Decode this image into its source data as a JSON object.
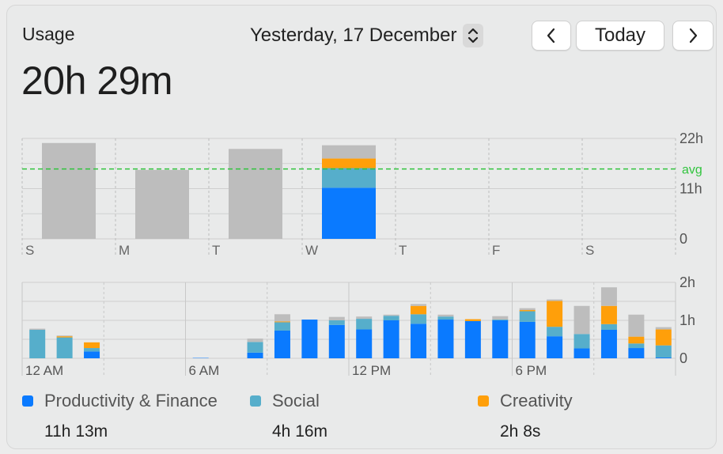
{
  "header": {
    "title": "Usage",
    "total": "20h 29m",
    "date_label": "Yesterday, 17 December",
    "today_label": "Today"
  },
  "colors": {
    "productivity": "#0a7aff",
    "social": "#56aecb",
    "creativity": "#ff9f0a",
    "other": "#bdbdbd",
    "avg_line": "#31c43e"
  },
  "icons": {
    "stepper": "chevron-up-down-icon",
    "prev": "chevron-left-icon",
    "next": "chevron-right-icon"
  },
  "legend": [
    {
      "name": "Productivity & Finance",
      "value": "11h 13m",
      "color": "#0a7aff"
    },
    {
      "name": "Social",
      "value": "4h 16m",
      "color": "#56aecb"
    },
    {
      "name": "Creativity",
      "value": "2h 8s",
      "color": "#ff9f0a"
    }
  ],
  "chart_data": [
    {
      "type": "bar",
      "stacked": true,
      "categories": [
        "S",
        "M",
        "T",
        "W",
        "T",
        "F",
        "S"
      ],
      "y_tick_labels": [
        "22h",
        "11h",
        "0"
      ],
      "ylim": [
        0,
        22
      ],
      "avg_label": "avg",
      "avg_value": 15.3,
      "series": [
        {
          "name": "Productivity & Finance",
          "values": [
            0,
            0,
            0,
            11.2,
            0,
            0,
            0
          ]
        },
        {
          "name": "Social",
          "values": [
            0,
            0,
            0,
            4.3,
            0,
            0,
            0
          ]
        },
        {
          "name": "Creativity",
          "values": [
            0,
            0,
            0,
            2.1,
            0,
            0,
            0
          ]
        },
        {
          "values": [
            21.0,
            15.1,
            19.7,
            2.9,
            0,
            0,
            0
          ]
        }
      ],
      "grid": true,
      "legend": "bottom"
    },
    {
      "type": "bar",
      "stacked": true,
      "x_tick_labels": [
        "12 AM",
        "6 AM",
        "12 PM",
        "6 PM"
      ],
      "y_tick_labels": [
        "2h",
        "1h",
        "0"
      ],
      "ylim": [
        0,
        2
      ],
      "categories": [
        0,
        1,
        2,
        3,
        4,
        5,
        6,
        7,
        8,
        9,
        10,
        11,
        12,
        13,
        14,
        15,
        16,
        17,
        18,
        19,
        20,
        21,
        22,
        23
      ],
      "series": [
        {
          "name": "Productivity & Finance",
          "values": [
            0,
            0,
            0.18,
            0,
            0,
            0,
            0.01,
            0,
            0.15,
            0.73,
            1.02,
            0.88,
            0.76,
            1.0,
            0.91,
            1.02,
            0.98,
            1.0,
            0.96,
            0.58,
            0.26,
            0.75,
            0.27,
            0.02
          ]
        },
        {
          "name": "Social",
          "values": [
            0.75,
            0.55,
            0.09,
            0,
            0,
            0,
            0,
            0,
            0.28,
            0.22,
            0,
            0.12,
            0.28,
            0.12,
            0.25,
            0.08,
            0,
            0.02,
            0.28,
            0.25,
            0.38,
            0.15,
            0.12,
            0.32
          ]
        },
        {
          "name": "Creativity",
          "values": [
            0,
            0.03,
            0.15,
            0,
            0,
            0,
            0,
            0,
            0,
            0.02,
            0,
            0,
            0,
            0,
            0.22,
            0,
            0.05,
            0,
            0.03,
            0.68,
            0,
            0.48,
            0.18,
            0.42
          ]
        },
        {
          "values": [
            0.03,
            0.02,
            0,
            0,
            0,
            0,
            0,
            0,
            0.09,
            0.19,
            0,
            0.09,
            0.06,
            0.03,
            0.05,
            0.05,
            0,
            0.09,
            0.05,
            0.04,
            0.74,
            0.49,
            0.58,
            0.06
          ]
        }
      ],
      "grid": true
    }
  ]
}
